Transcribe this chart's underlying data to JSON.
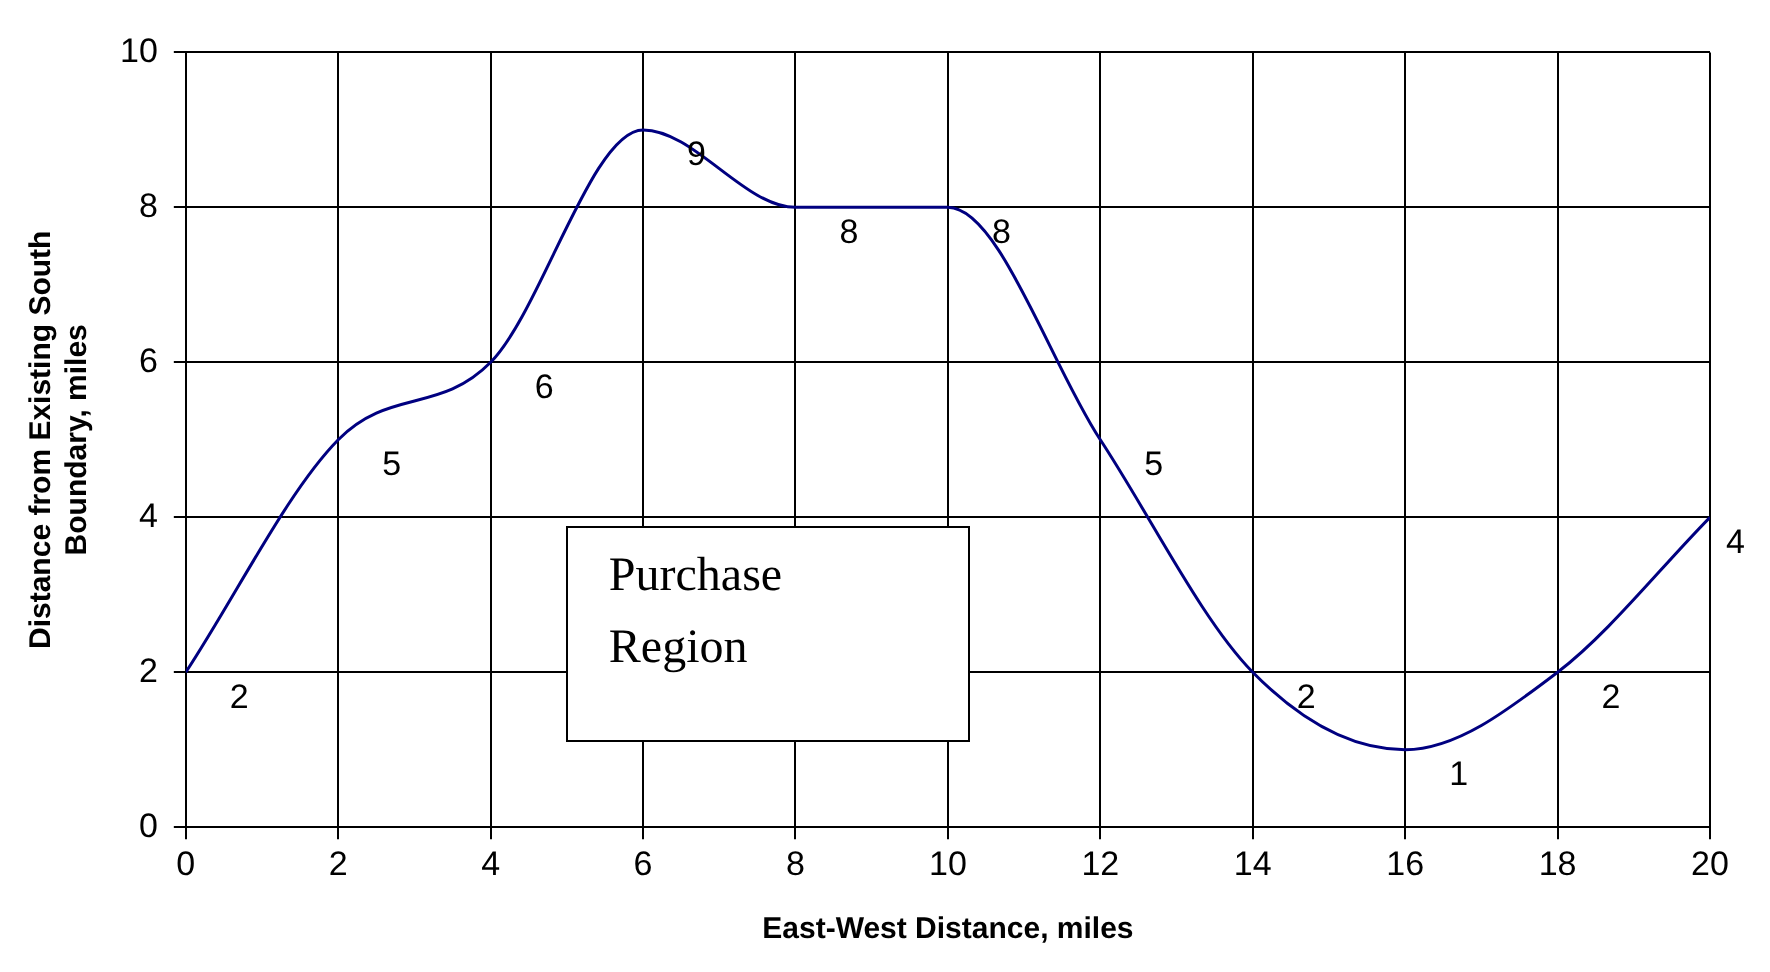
{
  "chart_data": {
    "type": "line",
    "xlabel": "East-West Distance, miles",
    "ylabel": "Distance from Existing South Boundary, miles",
    "x": [
      0,
      2,
      4,
      6,
      8,
      10,
      12,
      14,
      16,
      18,
      20
    ],
    "series": [
      {
        "color": "#000080",
        "values": [
          2,
          5,
          6,
          9,
          8,
          8,
          5,
          2,
          1,
          2,
          4
        ]
      }
    ],
    "xlim": [
      0,
      20
    ],
    "xticks": [
      0,
      2,
      4,
      6,
      8,
      10,
      12,
      14,
      16,
      18,
      20
    ],
    "ylim": [
      0,
      10
    ],
    "yticks": [
      0,
      2,
      4,
      6,
      8,
      10
    ],
    "grid": true,
    "legend": false,
    "marker": "none",
    "line_style": "solid",
    "data_labels": true,
    "annotations": [
      "Purchase Region"
    ]
  }
}
